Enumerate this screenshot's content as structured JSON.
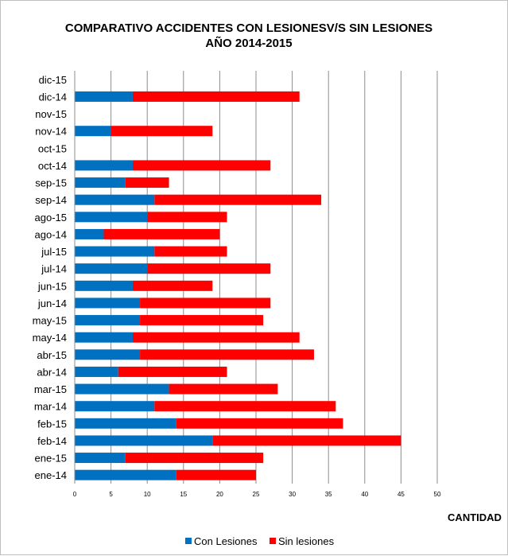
{
  "chart_data": {
    "type": "bar",
    "orientation": "horizontal",
    "stacked": true,
    "title_lines": [
      "COMPARATIVO ACCIDENTES CON LESIONESV/S SIN LESIONES",
      "AÑO 2014-2015"
    ],
    "xlabel": "CANTIDAD",
    "ylabel": "",
    "xlim": [
      0,
      50
    ],
    "x_ticks": [
      "0",
      "5",
      "10",
      "15",
      "20",
      "25",
      "30",
      "35",
      "40",
      "45",
      "50"
    ],
    "grid": "vertical",
    "legend_position": "bottom",
    "categories": [
      "ene-14",
      "ene-15",
      "feb-14",
      "feb-15",
      "mar-14",
      "mar-15",
      "abr-14",
      "abr-15",
      "may-14",
      "may-15",
      "jun-14",
      "jun-15",
      "jul-14",
      "jul-15",
      "ago-14",
      "ago-15",
      "sep-14",
      "sep-15",
      "oct-14",
      "oct-15",
      "nov-14",
      "nov-15",
      "dic-14",
      "dic-15"
    ],
    "series": [
      {
        "name": "Con Lesiones",
        "color": "#0070c0",
        "values": [
          14,
          7,
          19,
          14,
          11,
          13,
          6,
          9,
          8,
          9,
          9,
          8,
          10,
          11,
          4,
          10,
          11,
          7,
          8,
          0,
          5,
          0,
          8,
          0
        ]
      },
      {
        "name": "Sin lesiones",
        "color": "#ff0000",
        "values": [
          11,
          19,
          26,
          23,
          25,
          15,
          15,
          24,
          23,
          17,
          18,
          11,
          17,
          10,
          16,
          11,
          23,
          6,
          19,
          0,
          14,
          0,
          23,
          0
        ]
      }
    ]
  }
}
